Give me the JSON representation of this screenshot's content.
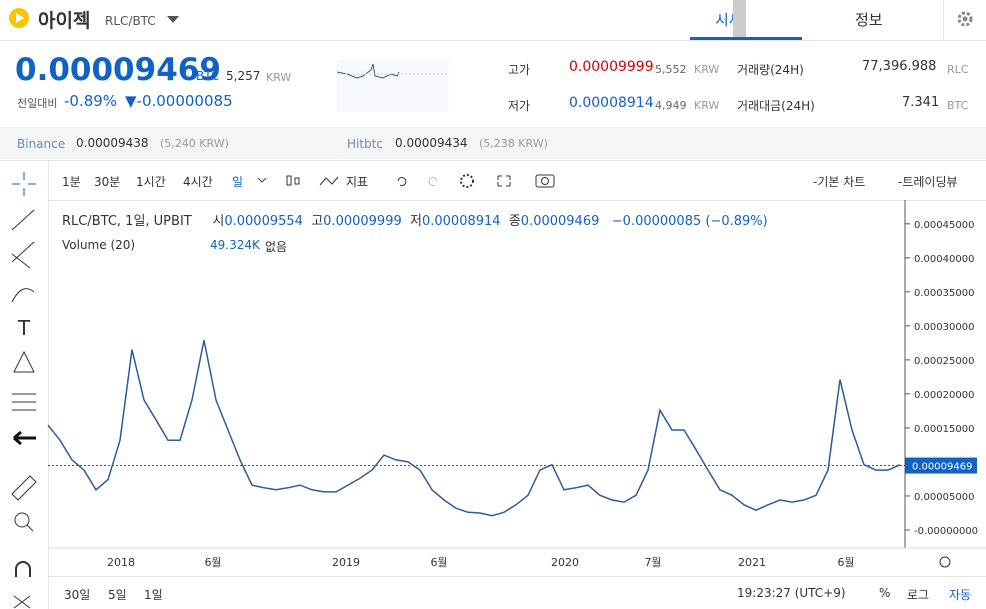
{
  "header": {
    "name": "아이젝",
    "pair": "RLC/BTC",
    "tabs": [
      "시세",
      "정보"
    ]
  },
  "price": {
    "last": "0.00009469",
    "unit": "BTC",
    "krw": "5,257",
    "krw_unit": "KRW",
    "change_label": "전일대비",
    "change_pct": "-0.89%",
    "change_abs": "▼-0.00000085"
  },
  "stats": {
    "high_label": "고가",
    "high": "0.00009999",
    "high_krw": "5,552",
    "low_label": "저가",
    "low": "0.00008914",
    "low_krw": "4,949",
    "krw_unit": "KRW",
    "volume_label": "거래량(24H)",
    "volume": "77,396.988",
    "volume_unit": "RLC",
    "amount_label": "거래대금(24H)",
    "amount": "7.341",
    "amount_unit": "BTC"
  },
  "exchanges": [
    {
      "name": "Binance",
      "price": "0.00009438",
      "krw": "(5,240 KRW)"
    },
    {
      "name": "Hitbtc",
      "price": "0.00009434",
      "krw": "(5,238 KRW)"
    }
  ],
  "toolbar": {
    "intervals": [
      "1분",
      "30분",
      "1시간",
      "4시간",
      "일"
    ],
    "indicator": "지표",
    "basic": "-기본 차트",
    "tradingview": "-트레이딩뷰"
  },
  "legend": {
    "symbol": "RLC/BTC, 1일, UPBIT",
    "open_label": "시",
    "open": "0.00009554",
    "high_label": "고",
    "high": "0.00009999",
    "low_label": "저",
    "low": "0.00008914",
    "close_label": "종",
    "close": "0.00009469",
    "change": "−0.00000085 (−0.89%)",
    "volume": "Volume (20)",
    "volume_value": "49.324K",
    "volume_na": "없음"
  },
  "chart_data": {
    "type": "line",
    "color": "#2a5d9a",
    "values": [
      0.000154,
      0.000132,
      0.000103,
      8.8e-05,
      5.9e-05,
      7.4e-05,
      0.000132,
      0.000265,
      0.000191,
      0.000162,
      0.000132,
      0.000132,
      0.000191,
      0.000279,
      0.000191,
      0.000147,
      0.000103,
      6.6e-05,
      6.2e-05,
      5.9e-05,
      6.2e-05,
      6.6e-05,
      5.9e-05,
      5.6e-05,
      5.6e-05,
      6.6e-05,
      7.6e-05,
      8.8e-05,
      0.00011,
      0.000103,
      0.0001,
      8.8e-05,
      5.9e-05,
      4.4e-05,
      3.2e-05,
      2.6e-05,
      2.5e-05,
      2.1e-05,
      2.6e-05,
      3.7e-05,
      5.1e-05,
      8.8e-05,
      9.6e-05,
      5.9e-05,
      6.2e-05,
      6.6e-05,
      5.1e-05,
      4.4e-05,
      4.1e-05,
      5.1e-05,
      8.8e-05,
      0.000176,
      0.000147,
      0.000147,
      0.000118,
      8.8e-05,
      5.9e-05,
      5.1e-05,
      3.7e-05,
      2.9e-05,
      3.7e-05,
      4.4e-05,
      4.1e-05,
      4.4e-05,
      5.1e-05,
      8.8e-05,
      0.000221,
      0.000147,
      9.6e-05,
      8.8e-05,
      8.8e-05,
      9.6e-05
    ],
    "ylim": [
      -2.65e-05,
      0.000485
    ],
    "yticks": [
      {
        "value": 0.00045,
        "label": "0.00045000"
      },
      {
        "value": 0.0004,
        "label": "0.00040000"
      },
      {
        "value": 0.00035,
        "label": "0.00035000"
      },
      {
        "value": 0.0003,
        "label": "0.00030000"
      },
      {
        "value": 0.00025,
        "label": "0.00025000"
      },
      {
        "value": 0.0002,
        "label": "0.00020000"
      },
      {
        "value": 0.00015,
        "label": "0.00015000"
      },
      {
        "value": 0.0001,
        "label": "0.00010000"
      },
      {
        "value": 5e-05,
        "label": "0.00005000"
      },
      {
        "value": 0,
        "label": "-0.00000000"
      }
    ],
    "last": {
      "value": 9.469e-05,
      "label": "0.00009469"
    },
    "xlabels": [
      "2018",
      "6월",
      "2019",
      "6월",
      "2020",
      "7월",
      "2021",
      "6월"
    ]
  },
  "footer": {
    "ranges": [
      "30일",
      "5일",
      "1일"
    ],
    "time": "19:23:27 (UTC+9)",
    "percent": "%",
    "log": "로그",
    "auto": "자동"
  }
}
